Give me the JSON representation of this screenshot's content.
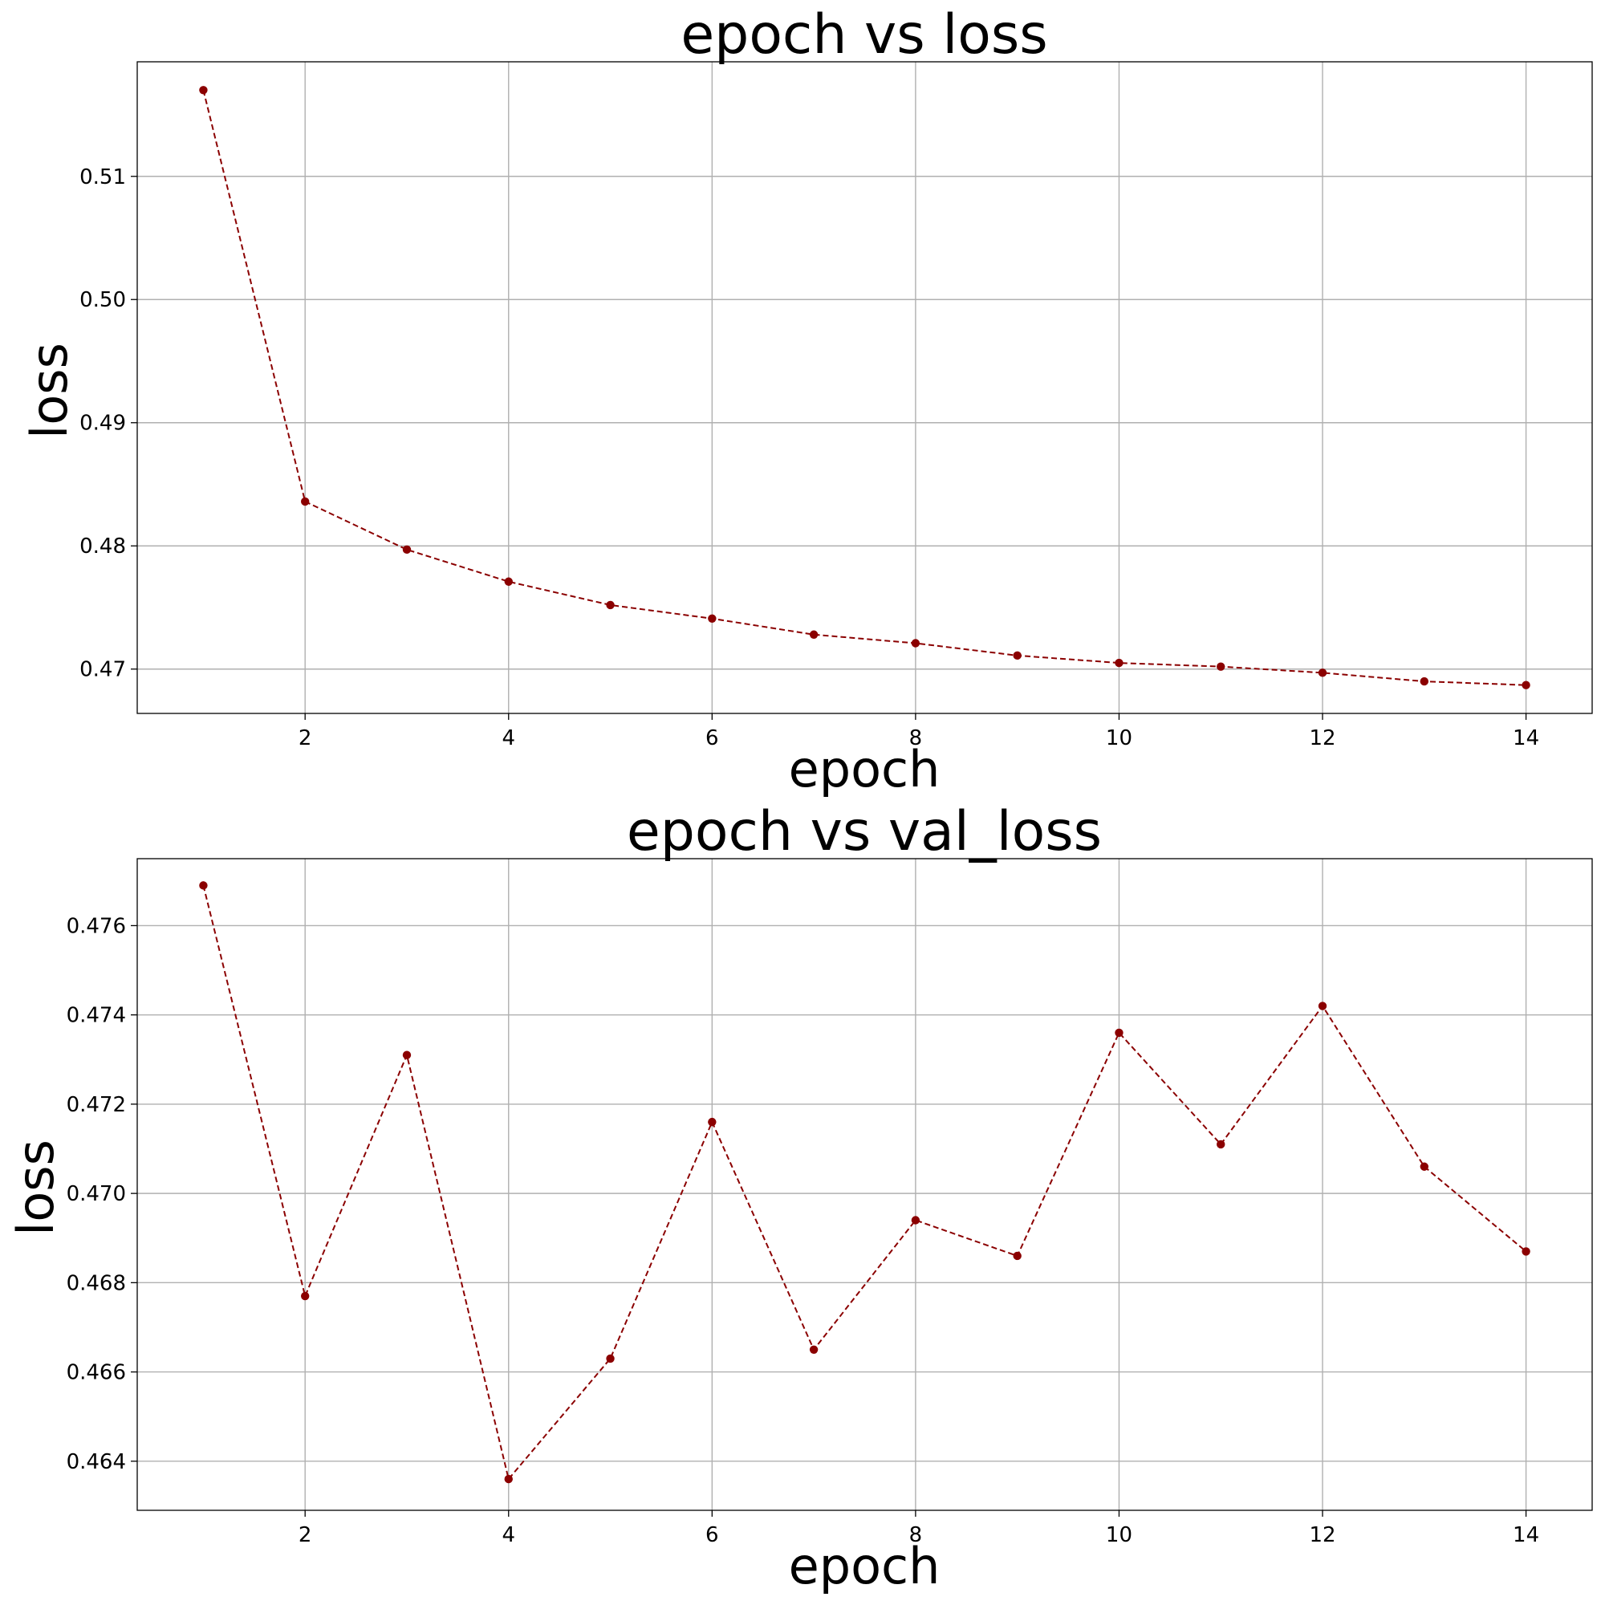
{
  "chart_data": [
    {
      "type": "line",
      "title": "epoch vs loss",
      "xlabel": "epoch",
      "ylabel": "loss",
      "xlim": [
        0.35,
        14.65
      ],
      "ylim": [
        0.4664,
        0.5193
      ],
      "xticks": [
        2,
        4,
        6,
        8,
        10,
        12,
        14
      ],
      "xtick_labels": [
        "2",
        "4",
        "6",
        "8",
        "10",
        "12",
        "14"
      ],
      "yticks": [
        0.47,
        0.48,
        0.49,
        0.5,
        0.51
      ],
      "ytick_labels": [
        "0.47",
        "0.48",
        "0.49",
        "0.50",
        "0.51"
      ],
      "grid": true,
      "series": [
        {
          "color": "#8b0000",
          "line_style": "dashed",
          "marker": "circle",
          "x": [
            1,
            2,
            3,
            4,
            5,
            6,
            7,
            8,
            9,
            10,
            11,
            12,
            13,
            14
          ],
          "y": [
            0.517,
            0.4836,
            0.4797,
            0.4771,
            0.4752,
            0.4741,
            0.4728,
            0.4721,
            0.4711,
            0.4705,
            0.4702,
            0.4697,
            0.469,
            0.4687
          ]
        }
      ]
    },
    {
      "type": "line",
      "title": "epoch vs val_loss",
      "xlabel": "epoch",
      "ylabel": "loss",
      "xlim": [
        0.35,
        14.65
      ],
      "ylim": [
        0.4629,
        0.4775
      ],
      "xticks": [
        2,
        4,
        6,
        8,
        10,
        12,
        14
      ],
      "xtick_labels": [
        "2",
        "4",
        "6",
        "8",
        "10",
        "12",
        "14"
      ],
      "yticks": [
        0.464,
        0.466,
        0.468,
        0.47,
        0.472,
        0.474,
        0.476
      ],
      "ytick_labels": [
        "0.464",
        "0.466",
        "0.468",
        "0.470",
        "0.472",
        "0.474",
        "0.476"
      ],
      "grid": true,
      "series": [
        {
          "color": "#8b0000",
          "line_style": "dashed",
          "marker": "circle",
          "x": [
            1,
            2,
            3,
            4,
            5,
            6,
            7,
            8,
            9,
            10,
            11,
            12,
            13,
            14
          ],
          "y": [
            0.4769,
            0.4677,
            0.4731,
            0.4636,
            0.4663,
            0.4716,
            0.4665,
            0.4694,
            0.4686,
            0.4736,
            0.4711,
            0.4742,
            0.4706,
            0.4687
          ]
        }
      ]
    }
  ]
}
